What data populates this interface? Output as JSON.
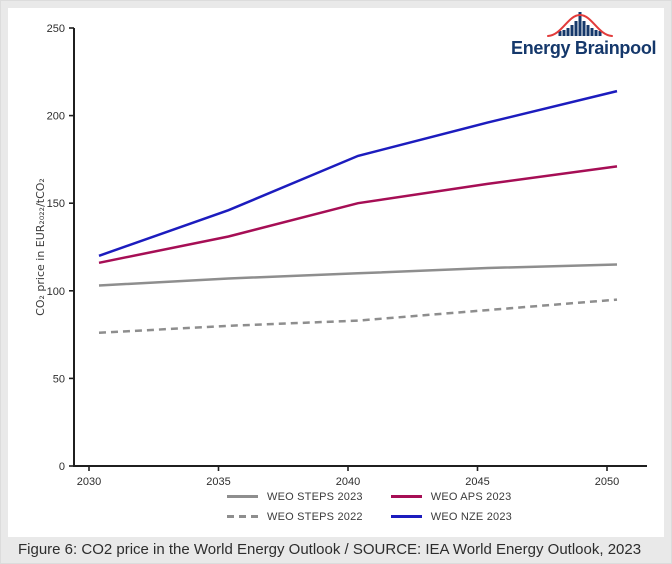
{
  "logo": {
    "name": "Energy Brainpool",
    "navy": "#15386b",
    "red": "#e23b3b"
  },
  "caption": "Figure 6: CO2 price in the World Energy Outlook / SOURCE: IEA World Energy Outlook, 2023",
  "chart_data": {
    "type": "line",
    "title": "",
    "xlabel": "",
    "ylabel": "CO₂ price in EUR₂₀₂₂/tCO₂",
    "xlim": [
      2029.4,
      2051.5
    ],
    "ylim": [
      0,
      250
    ],
    "yticks": [
      0,
      50,
      100,
      150,
      200,
      250
    ],
    "xticks": [
      2030,
      2035,
      2040,
      2045,
      2050
    ],
    "grid": false,
    "legend_position": "bottom",
    "axis_color": "#1f1f1f",
    "tick_label_color": "#2e2e2e",
    "x": [
      2030,
      2035,
      2040,
      2045,
      2050
    ],
    "series": [
      {
        "name": "WEO STEPS 2023",
        "color": "#8e8e8e",
        "dash": "solid",
        "values": [
          103,
          107,
          110,
          113,
          115
        ]
      },
      {
        "name": "WEO STEPS 2022",
        "color": "#8e8e8e",
        "dash": "dashed",
        "values": [
          76,
          80,
          83,
          89,
          95
        ]
      },
      {
        "name": "WEO APS 2023",
        "color": "#a60e55",
        "dash": "solid",
        "values": [
          116,
          131,
          150,
          161,
          171
        ]
      },
      {
        "name": "WEO NZE 2023",
        "color": "#1c1cbe",
        "dash": "solid",
        "values": [
          120,
          146,
          177,
          196,
          214
        ]
      }
    ]
  }
}
